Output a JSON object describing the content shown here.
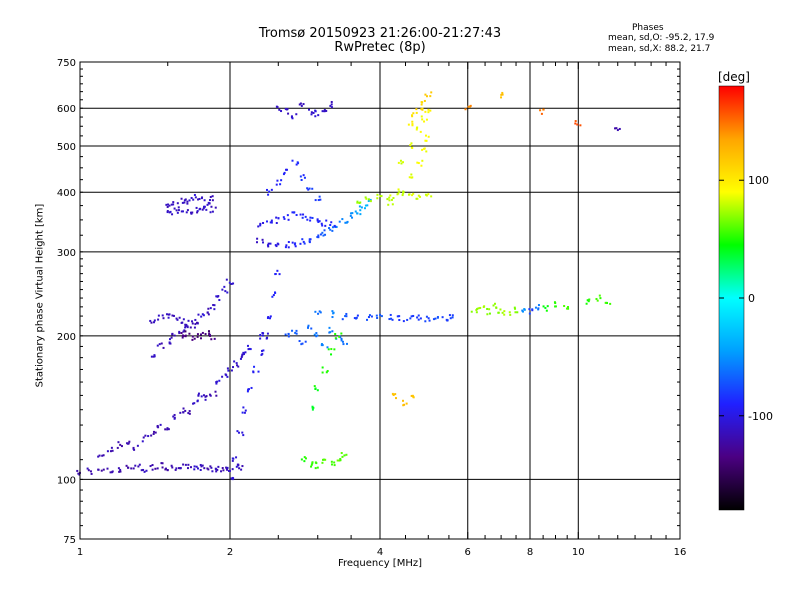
{
  "header": {
    "title_line1": "Tromsø 20150923 21:26:00-21:27:43",
    "title_line2": "RwPretec (8p)"
  },
  "stats": {
    "title": "Phases",
    "o_line": "mean, sd,O: -95.2, 17.9",
    "x_line": "mean, sd,X:  88.2, 21.7"
  },
  "colorbar": {
    "unit": "[deg]",
    "ticks": [
      {
        "value": 100,
        "label": "100"
      },
      {
        "value": 0,
        "label": "0"
      },
      {
        "value": -100,
        "label": "-100"
      }
    ],
    "range": [
      -180,
      180
    ],
    "colors": [
      "#000000",
      "#4b0082",
      "#2020ff",
      "#00a0ff",
      "#00ffff",
      "#00ff00",
      "#ffff00",
      "#ffa500",
      "#ff0000"
    ]
  },
  "chart_data": {
    "type": "scatter",
    "title": "Tromsø 20150923 21:26:00-21:27:43",
    "subtitle": "RwPretec (8p)",
    "xlabel": "Frequency [MHz]",
    "ylabel": "Stationary phase Virtual Height [km]",
    "xscale": "log",
    "yscale": "log",
    "xlim": [
      1,
      16
    ],
    "ylim": [
      75,
      750
    ],
    "xticks": [
      1,
      2,
      4,
      6,
      8,
      10,
      16
    ],
    "yticks": [
      75,
      100,
      200,
      300,
      400,
      500,
      600,
      750
    ],
    "grid": true,
    "color_variable": "phase [deg]",
    "series": [
      {
        "x": [
          1.0,
          1.05,
          1.1,
          1.15,
          1.2,
          1.25,
          1.3,
          1.35,
          1.4,
          1.45,
          1.5,
          1.55,
          1.6,
          1.65,
          1.7,
          1.75,
          1.8,
          1.85,
          1.9,
          1.95,
          2.0,
          2.05,
          2.1
        ],
        "y": [
          103,
          104,
          105,
          104,
          105,
          106,
          106,
          105,
          106,
          107,
          106,
          106,
          107,
          106,
          105,
          106,
          106,
          105,
          105,
          106,
          105,
          106,
          106
        ],
        "phase": [
          -120,
          -118,
          -120,
          -115,
          -118,
          -120,
          -118,
          -115,
          -120,
          -118,
          -120,
          -118,
          -115,
          -118,
          -110,
          -115,
          -118,
          -112,
          -115,
          -118,
          -112,
          -110,
          -115
        ]
      },
      {
        "x": [
          1.1,
          1.15,
          1.2,
          1.25,
          1.3,
          1.35,
          1.4,
          1.45,
          1.5,
          1.55,
          1.6,
          1.65,
          1.7,
          1.75,
          1.8,
          1.85,
          1.9,
          1.95,
          2.0,
          2.05,
          2.1,
          2.15,
          2.2,
          2.3
        ],
        "y": [
          112,
          115,
          118,
          120,
          116,
          122,
          125,
          130,
          128,
          135,
          140,
          138,
          145,
          150,
          148,
          152,
          160,
          165,
          170,
          175,
          180,
          185,
          190,
          200
        ],
        "phase": [
          -118,
          -115,
          -120,
          -118,
          -115,
          -112,
          -118,
          -115,
          -120,
          -112,
          -115,
          -118,
          -112,
          -110,
          -115,
          -118,
          -105,
          -110,
          -108,
          -112,
          -110,
          -105,
          -100,
          -98
        ]
      },
      {
        "x": [
          1.4,
          1.45,
          1.5,
          1.55,
          1.6,
          1.65,
          1.7,
          1.75,
          1.8,
          1.85,
          1.9,
          1.95,
          2.0
        ],
        "y": [
          180,
          190,
          195,
          200,
          205,
          210,
          215,
          220,
          225,
          230,
          240,
          250,
          260
        ],
        "phase": [
          -112,
          -115,
          -110,
          -118,
          -112,
          -115,
          -110,
          -108,
          -115,
          -112,
          -110,
          -108,
          -105
        ]
      },
      {
        "x": [
          1.5,
          1.55,
          1.6,
          1.65,
          1.7,
          1.75,
          1.8,
          1.85
        ],
        "y": [
          375,
          380,
          385,
          382,
          390,
          385,
          380,
          388
        ],
        "phase": [
          -112,
          -110,
          -115,
          -112,
          -108,
          -110,
          -112,
          -115
        ]
      },
      {
        "x": [
          1.5,
          1.55,
          1.6,
          1.65,
          1.7,
          1.75,
          1.8,
          1.85
        ],
        "y": [
          360,
          365,
          370,
          362,
          368,
          365,
          372,
          368
        ],
        "phase": [
          -108,
          -112,
          -110,
          -115,
          -112,
          -110,
          -108,
          -112
        ]
      },
      {
        "x": [
          1.4,
          1.45,
          1.5,
          1.55,
          1.6,
          1.65,
          1.7
        ],
        "y": [
          215,
          218,
          220,
          218,
          216,
          212,
          210
        ],
        "phase": [
          -115,
          -112,
          -110,
          -115,
          -112,
          -110,
          -118
        ]
      },
      {
        "x": [
          1.6,
          1.65,
          1.7,
          1.75,
          1.8,
          1.85
        ],
        "y": [
          200,
          202,
          198,
          200,
          202,
          199
        ],
        "phase": [
          -135,
          -140,
          -138,
          -135,
          -140,
          -132
        ]
      },
      {
        "x": [
          2.0,
          2.05,
          2.1,
          2.15,
          2.2,
          2.25,
          2.3,
          2.35,
          2.4,
          2.45,
          2.5
        ],
        "y": [
          100,
          110,
          125,
          140,
          155,
          170,
          185,
          200,
          220,
          245,
          270
        ],
        "phase": [
          -108,
          -105,
          -100,
          -98,
          -95,
          -92,
          -98,
          -100,
          -95,
          -90,
          -92
        ]
      },
      {
        "x": [
          2.3,
          2.4,
          2.5,
          2.6,
          2.7,
          2.8,
          2.9,
          3.0,
          3.1,
          3.2,
          3.3,
          3.4,
          3.5,
          3.6,
          3.7,
          3.8
        ],
        "y": [
          315,
          312,
          310,
          310,
          312,
          315,
          318,
          322,
          328,
          335,
          342,
          350,
          358,
          365,
          372,
          380
        ],
        "phase": [
          -110,
          -105,
          -100,
          -95,
          -90,
          -85,
          -80,
          -75,
          -70,
          -65,
          -60,
          -55,
          -50,
          -45,
          -40,
          -35
        ]
      },
      {
        "x": [
          2.3,
          2.4,
          2.5,
          2.6,
          2.7,
          2.8,
          2.9,
          3.0,
          3.1,
          3.2
        ],
        "y": [
          340,
          345,
          350,
          355,
          360,
          358,
          352,
          348,
          345,
          342
        ],
        "phase": [
          -100,
          -95,
          -98,
          -92,
          -90,
          -88,
          -85,
          -90,
          -92,
          -88
        ]
      },
      {
        "x": [
          2.4,
          2.5,
          2.6,
          2.7,
          2.8,
          2.9,
          3.0
        ],
        "y": [
          400,
          420,
          440,
          460,
          430,
          410,
          390
        ],
        "phase": [
          -95,
          -92,
          -90,
          -88,
          -85,
          -82,
          -80
        ]
      },
      {
        "x": [
          2.5,
          2.6,
          2.7,
          2.8,
          2.9,
          3.0,
          3.1,
          3.2
        ],
        "y": [
          600,
          590,
          580,
          610,
          590,
          585,
          600,
          610
        ],
        "phase": [
          -110,
          -115,
          -108,
          -112,
          -110,
          -105,
          -108,
          -112
        ]
      },
      {
        "x": [
          2.6,
          2.7,
          2.8,
          2.9,
          3.0,
          3.1,
          3.2,
          3.3,
          3.4
        ],
        "y": [
          200,
          205,
          195,
          210,
          200,
          190,
          205,
          200,
          195
        ],
        "phase": [
          -75,
          -70,
          -72,
          -65,
          -60,
          -55,
          -58,
          -60,
          -62
        ]
      },
      {
        "x": [
          2.8,
          2.9,
          3.0,
          3.1,
          3.2,
          3.3,
          3.4
        ],
        "y": [
          110,
          108,
          107,
          109,
          108,
          110,
          112
        ],
        "phase": [
          50,
          55,
          52,
          58,
          55,
          60,
          62
        ]
      },
      {
        "x": [
          2.9,
          3.0,
          3.1,
          3.2,
          3.3
        ],
        "y": [
          140,
          155,
          170,
          185,
          200
        ],
        "phase": [
          40,
          45,
          48,
          50,
          52
        ]
      },
      {
        "x": [
          3.0,
          3.2,
          3.4,
          3.6,
          3.8,
          4.0,
          4.2,
          4.4,
          4.6,
          4.8,
          5.0,
          5.2,
          5.4,
          5.6
        ],
        "y": [
          225,
          222,
          220,
          218,
          218,
          218,
          218,
          217,
          218,
          218,
          217,
          218,
          218,
          218
        ],
        "phase": [
          -60,
          -55,
          -70,
          -80,
          -75,
          -70,
          -80,
          -85,
          -78,
          -82,
          -80,
          -75,
          -78,
          -80
        ]
      },
      {
        "x": [
          3.6,
          3.8,
          4.0,
          4.2,
          4.4,
          4.6,
          4.8,
          5.0
        ],
        "y": [
          380,
          385,
          390,
          392,
          395,
          395,
          390,
          392
        ],
        "phase": [
          70,
          75,
          78,
          80,
          82,
          85,
          80,
          82
        ]
      },
      {
        "x": [
          4.2,
          4.4,
          4.6,
          4.8,
          4.9,
          5.0
        ],
        "y": [
          380,
          400,
          430,
          460,
          490,
          520
        ],
        "phase": [
          80,
          82,
          85,
          88,
          90,
          90
        ]
      },
      {
        "x": [
          4.4,
          4.6,
          4.8,
          4.9,
          5.0
        ],
        "y": [
          460,
          500,
          540,
          570,
          590
        ],
        "phase": [
          82,
          85,
          88,
          90,
          92
        ]
      },
      {
        "x": [
          4.6,
          4.7,
          4.8,
          4.9,
          5.0
        ],
        "y": [
          560,
          580,
          600,
          620,
          640
        ],
        "phase": [
          100,
          105,
          108,
          110,
          115
        ]
      },
      {
        "x": [
          4.3,
          4.5,
          4.7
        ],
        "y": [
          150,
          145,
          148
        ],
        "phase": [
          120,
          125,
          118
        ]
      },
      {
        "x": [
          6.2,
          6.4,
          6.6,
          6.8,
          7.0,
          7.2,
          7.5,
          7.8,
          8.0,
          8.3,
          8.6,
          9.0,
          9.5
        ],
        "y": [
          225,
          228,
          225,
          230,
          226,
          224,
          226,
          228,
          225,
          230,
          228,
          232,
          230
        ],
        "phase": [
          70,
          75,
          68,
          72,
          70,
          75,
          68,
          -50,
          -80,
          -60,
          45,
          50,
          55
        ]
      },
      {
        "x": [
          10.5,
          11.0,
          11.5
        ],
        "y": [
          235,
          240,
          232
        ],
        "phase": [
          50,
          55,
          52
        ]
      },
      {
        "x": [
          6.0,
          7.0,
          8.5,
          10.0,
          12.0
        ],
        "y": [
          600,
          640,
          590,
          560,
          540
        ],
        "phase": [
          140,
          120,
          150,
          160,
          -120
        ]
      }
    ]
  }
}
